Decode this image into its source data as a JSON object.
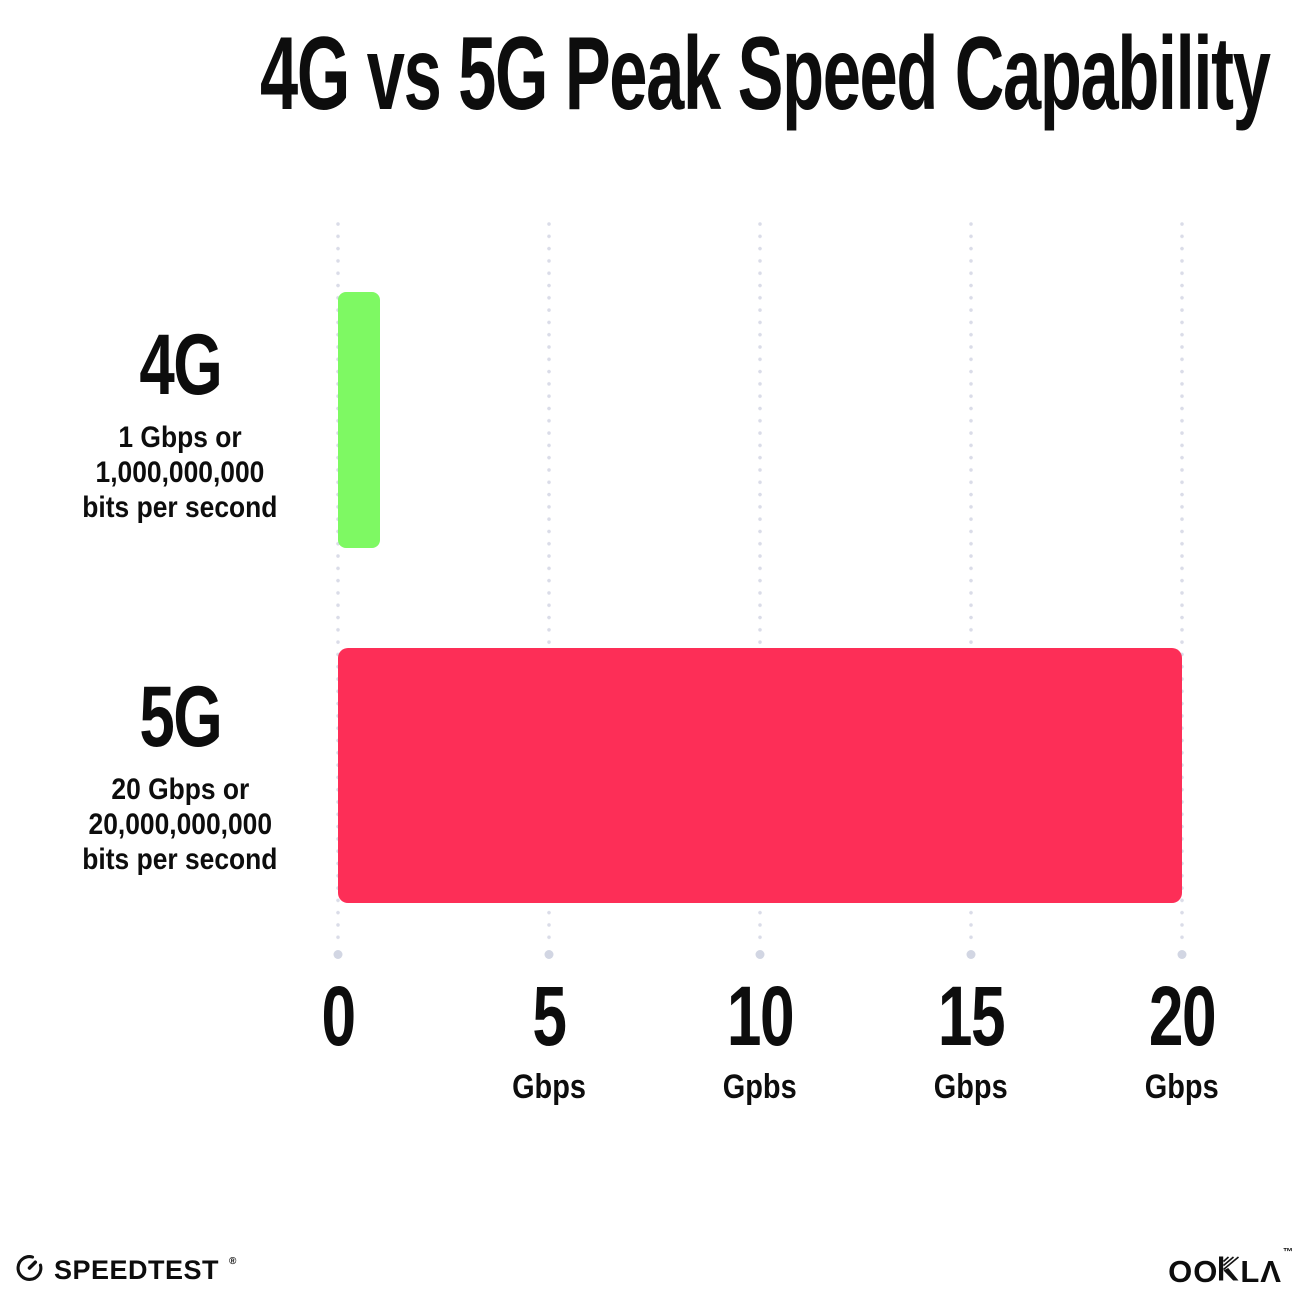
{
  "chart_data": {
    "type": "bar",
    "orientation": "horizontal",
    "title": "4G vs 5G Peak Speed Capability",
    "categories": [
      "4G",
      "5G"
    ],
    "values": [
      1,
      20
    ],
    "value_unit": "Gbps",
    "xlim": [
      0,
      20
    ],
    "x_ticks": [
      0,
      5,
      10,
      15,
      20
    ],
    "x_tick_labels": [
      "0",
      "5 Gbps",
      "10 Gpbs",
      "15 Gbps",
      "20 Gbps"
    ],
    "bar_colors": [
      "#7ef963",
      "#fd2e57"
    ],
    "grid": "dotted vertical gridlines at each tick, large dot at axis end",
    "legend": "none",
    "annotations": [
      "4G: 1 Gbps or 1,000,000,000 bits per second",
      "5G: 20 Gbps or 20,000,000,000 bits per second"
    ]
  },
  "title": "4G vs 5G Peak Speed Capability",
  "rows": [
    {
      "name": "4G",
      "desc": [
        "1 Gbps or",
        "1,000,000,000",
        "bits per second"
      ]
    },
    {
      "name": "5G",
      "desc": [
        "20 Gbps or",
        "20,000,000,000",
        "bits per second"
      ]
    }
  ],
  "x_axis": {
    "ticks": [
      {
        "label": "0",
        "unit": ""
      },
      {
        "label": "5",
        "unit": "Gbps"
      },
      {
        "label": "10",
        "unit": "Gpbs"
      },
      {
        "label": "15",
        "unit": "Gbps"
      },
      {
        "label": "20",
        "unit": "Gbps"
      }
    ]
  },
  "footer": {
    "speedtest_label": "SPEEDTEST",
    "speedtest_trademark": "®",
    "ookla_part1": "OO",
    "ookla_part2": "LΛ",
    "ookla_trademark": "™"
  },
  "colors": {
    "bar_4g": "#7ef963",
    "bar_5g": "#fd2e57",
    "grid_dot": "#dadce8",
    "grid_dot_end": "#d2d6e3",
    "text": "#0d0d0d",
    "background": "#ffffff"
  }
}
